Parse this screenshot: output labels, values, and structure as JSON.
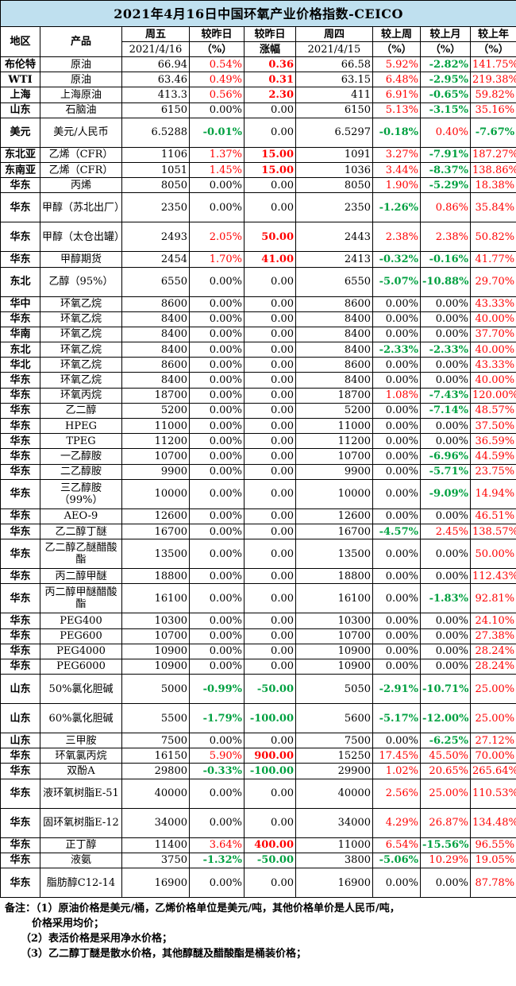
{
  "title": "2021年4月16日中国环氧产业价格指数-CEICO",
  "headers": {
    "region": "地区",
    "product": "产品",
    "fri": "周五",
    "fri_date": "2021/4/16",
    "chg_day_pct": "较昨日",
    "chg_day_pct_unit": "（%）",
    "chg_day_abs": "较昨日",
    "chg_day_abs_unit": "涨幅",
    "thu": "周四",
    "thu_date": "2021/4/15",
    "chg_week": "较上周",
    "chg_week_unit": "（%）",
    "chg_month": "较上月",
    "chg_month_unit": "（%）",
    "chg_year": "较上年",
    "chg_year_unit": "（%）"
  },
  "rows": [
    {
      "region": "布伦特",
      "product": "原油",
      "fri": "66.94",
      "d_pct": "0.54%",
      "d_abs": "0.36",
      "thu": "66.58",
      "w": "5.92%",
      "m": "-2.82%",
      "y": "141.75%",
      "h": 20
    },
    {
      "region": "WTI",
      "product": "原油",
      "fri": "63.46",
      "d_pct": "0.49%",
      "d_abs": "0.31",
      "thu": "63.15",
      "w": "6.48%",
      "m": "-2.95%",
      "y": "219.38%",
      "h": 20
    },
    {
      "region": "上海",
      "product": "上海原油",
      "fri": "413.3",
      "d_pct": "0.56%",
      "d_abs": "2.30",
      "thu": "411",
      "w": "6.91%",
      "m": "-0.65%",
      "y": "59.82%",
      "h": 20
    },
    {
      "region": "山东",
      "product": "石脑油",
      "fri": "6150",
      "d_pct": "0.00%",
      "d_abs": "0.00",
      "thu": "6150",
      "w": "5.13%",
      "m": "-3.15%",
      "y": "35.16%",
      "h": 20
    },
    {
      "region": "美元",
      "product": "美元/人民币",
      "fri": "6.5288",
      "d_pct": "-0.01%",
      "d_abs": "0.00",
      "thu": "6.5297",
      "w": "-0.18%",
      "m": "0.40%",
      "y": "-7.67%",
      "h": 38
    },
    {
      "region": "东北亚",
      "product": "乙烯（CFR）",
      "fri": "1106",
      "d_pct": "1.37%",
      "d_abs": "15.00",
      "thu": "1091",
      "w": "3.27%",
      "m": "-7.91%",
      "y": "187.27%",
      "h": 20
    },
    {
      "region": "东南亚",
      "product": "乙烯（CFR）",
      "fri": "1051",
      "d_pct": "1.45%",
      "d_abs": "15.00",
      "thu": "1036",
      "w": "3.44%",
      "m": "-8.37%",
      "y": "138.86%",
      "h": 20
    },
    {
      "region": "华东",
      "product": "丙烯",
      "fri": "8050",
      "d_pct": "0.00%",
      "d_abs": "0.00",
      "thu": "8050",
      "w": "1.90%",
      "m": "-5.29%",
      "y": "18.38%",
      "h": 20
    },
    {
      "region": "华东",
      "product": "甲醇（苏北出厂）",
      "fri": "2350",
      "d_pct": "0.00%",
      "d_abs": "0.00",
      "thu": "2350",
      "w": "-1.26%",
      "m": "0.86%",
      "y": "35.84%",
      "h": 38
    },
    {
      "region": "华东",
      "product": "甲醇（太仓出罐）",
      "fri": "2493",
      "d_pct": "2.05%",
      "d_abs": "50.00",
      "thu": "2443",
      "w": "2.38%",
      "m": "2.38%",
      "y": "50.82%",
      "h": 38
    },
    {
      "region": "华东",
      "product": "甲醇期货",
      "fri": "2454",
      "d_pct": "1.70%",
      "d_abs": "41.00",
      "thu": "2413",
      "w": "-0.32%",
      "m": "-0.16%",
      "y": "41.77%",
      "h": 20
    },
    {
      "region": "东北",
      "product": "乙醇（95%）",
      "fri": "6550",
      "d_pct": "0.00%",
      "d_abs": "0.00",
      "thu": "6550",
      "w": "-5.07%",
      "m": "-10.88%",
      "y": "29.70%",
      "h": 38
    },
    {
      "region": "华中",
      "product": "环氧乙烷",
      "fri": "8600",
      "d_pct": "0.00%",
      "d_abs": "0.00",
      "thu": "8600",
      "w": "0.00%",
      "m": "0.00%",
      "y": "43.33%",
      "h": 20
    },
    {
      "region": "华东",
      "product": "环氧乙烷",
      "fri": "8400",
      "d_pct": "0.00%",
      "d_abs": "0.00",
      "thu": "8400",
      "w": "0.00%",
      "m": "0.00%",
      "y": "40.00%",
      "h": 20
    },
    {
      "region": "华南",
      "product": "环氧乙烷",
      "fri": "8400",
      "d_pct": "0.00%",
      "d_abs": "0.00",
      "thu": "8400",
      "w": "0.00%",
      "m": "0.00%",
      "y": "37.70%",
      "h": 20
    },
    {
      "region": "东北",
      "product": "环氧乙烷",
      "fri": "8400",
      "d_pct": "0.00%",
      "d_abs": "0.00",
      "thu": "8400",
      "w": "-2.33%",
      "m": "-2.33%",
      "y": "40.00%",
      "h": 20
    },
    {
      "region": "华北",
      "product": "环氧乙烷",
      "fri": "8600",
      "d_pct": "0.00%",
      "d_abs": "0.00",
      "thu": "8600",
      "w": "0.00%",
      "m": "0.00%",
      "y": "43.33%",
      "h": 20
    },
    {
      "region": "华东",
      "product": "环氧乙烷",
      "fri": "8400",
      "d_pct": "0.00%",
      "d_abs": "0.00",
      "thu": "8400",
      "w": "0.00%",
      "m": "0.00%",
      "y": "40.00%",
      "h": 20
    },
    {
      "region": "华东",
      "product": "环氧丙烷",
      "fri": "18700",
      "d_pct": "0.00%",
      "d_abs": "0.00",
      "thu": "18700",
      "w": "1.08%",
      "m": "-7.43%",
      "y": "120.00%",
      "h": 20
    },
    {
      "region": "华东",
      "product": "乙二醇",
      "fri": "5200",
      "d_pct": "0.00%",
      "d_abs": "0.00",
      "thu": "5200",
      "w": "0.00%",
      "m": "-7.14%",
      "y": "48.57%",
      "h": 20
    },
    {
      "region": "华东",
      "product": "HPEG",
      "fri": "11000",
      "d_pct": "0.00%",
      "d_abs": "0.00",
      "thu": "11000",
      "w": "0.00%",
      "m": "0.00%",
      "y": "37.50%",
      "h": 20
    },
    {
      "region": "华东",
      "product": "TPEG",
      "fri": "11200",
      "d_pct": "0.00%",
      "d_abs": "0.00",
      "thu": "11200",
      "w": "0.00%",
      "m": "0.00%",
      "y": "36.59%",
      "h": 20
    },
    {
      "region": "华东",
      "product": "一乙醇胺",
      "fri": "10700",
      "d_pct": "0.00%",
      "d_abs": "0.00",
      "thu": "10700",
      "w": "0.00%",
      "m": "-6.96%",
      "y": "44.59%",
      "h": 20
    },
    {
      "region": "华东",
      "product": "二乙醇胺",
      "fri": "9900",
      "d_pct": "0.00%",
      "d_abs": "0.00",
      "thu": "9900",
      "w": "0.00%",
      "m": "-5.71%",
      "y": "23.75%",
      "h": 20
    },
    {
      "region": "华东",
      "product": "三乙醇胺（99%）",
      "fri": "10000",
      "d_pct": "0.00%",
      "d_abs": "0.00",
      "thu": "10000",
      "w": "0.00%",
      "m": "-9.09%",
      "y": "14.94%",
      "h": 38
    },
    {
      "region": "华东",
      "product": "AEO-9",
      "fri": "12600",
      "d_pct": "0.00%",
      "d_abs": "0.00",
      "thu": "12600",
      "w": "0.00%",
      "m": "0.00%",
      "y": "46.51%",
      "h": 20
    },
    {
      "region": "华东",
      "product": "乙二醇丁醚",
      "fri": "16700",
      "d_pct": "0.00%",
      "d_abs": "0.00",
      "thu": "16700",
      "w": "-4.57%",
      "m": "2.45%",
      "y": "138.57%",
      "h": 20
    },
    {
      "region": "华东",
      "product": "乙二醇乙醚醋酸酯",
      "fri": "13500",
      "d_pct": "0.00%",
      "d_abs": "0.00",
      "thu": "13500",
      "w": "0.00%",
      "m": "0.00%",
      "y": "50.00%",
      "h": 38
    },
    {
      "region": "华东",
      "product": "丙二醇甲醚",
      "fri": "18800",
      "d_pct": "0.00%",
      "d_abs": "0.00",
      "thu": "18800",
      "w": "0.00%",
      "m": "0.00%",
      "y": "112.43%",
      "h": 20
    },
    {
      "region": "华东",
      "product": "丙二醇甲醚醋酸酯",
      "fri": "16100",
      "d_pct": "0.00%",
      "d_abs": "0.00",
      "thu": "16100",
      "w": "0.00%",
      "m": "-1.83%",
      "y": "92.81%",
      "h": 38
    },
    {
      "region": "华东",
      "product": "PEG400",
      "fri": "10300",
      "d_pct": "0.00%",
      "d_abs": "0.00",
      "thu": "10300",
      "w": "0.00%",
      "m": "0.00%",
      "y": "24.10%",
      "h": 20
    },
    {
      "region": "华东",
      "product": "PEG600",
      "fri": "10700",
      "d_pct": "0.00%",
      "d_abs": "0.00",
      "thu": "10700",
      "w": "0.00%",
      "m": "0.00%",
      "y": "27.38%",
      "h": 20
    },
    {
      "region": "华东",
      "product": "PEG4000",
      "fri": "10900",
      "d_pct": "0.00%",
      "d_abs": "0.00",
      "thu": "10900",
      "w": "0.00%",
      "m": "0.00%",
      "y": "28.24%",
      "h": 20
    },
    {
      "region": "华东",
      "product": "PEG6000",
      "fri": "10900",
      "d_pct": "0.00%",
      "d_abs": "0.00",
      "thu": "10900",
      "w": "0.00%",
      "m": "0.00%",
      "y": "28.24%",
      "h": 20
    },
    {
      "region": "山东",
      "product": "50%氯化胆碱",
      "fri": "5000",
      "d_pct": "-0.99%",
      "d_abs": "-50.00",
      "thu": "5050",
      "w": "-2.91%",
      "m": "-10.71%",
      "y": "25.00%",
      "h": 38
    },
    {
      "region": "山东",
      "product": "60%氯化胆碱",
      "fri": "5500",
      "d_pct": "-1.79%",
      "d_abs": "-100.00",
      "thu": "5600",
      "w": "-5.17%",
      "m": "-12.00%",
      "y": "25.00%",
      "h": 38
    },
    {
      "region": "山东",
      "product": "三甲胺",
      "fri": "7500",
      "d_pct": "0.00%",
      "d_abs": "0.00",
      "thu": "7500",
      "w": "0.00%",
      "m": "-6.25%",
      "y": "27.12%",
      "h": 20
    },
    {
      "region": "华东",
      "product": "环氧氯丙烷",
      "fri": "16150",
      "d_pct": "5.90%",
      "d_abs": "900.00",
      "thu": "15250",
      "w": "17.45%",
      "m": "45.50%",
      "y": "70.00%",
      "h": 20
    },
    {
      "region": "华东",
      "product": "双酚A",
      "fri": "29800",
      "d_pct": "-0.33%",
      "d_abs": "-100.00",
      "thu": "29900",
      "w": "1.02%",
      "m": "20.65%",
      "y": "265.64%",
      "h": 20
    },
    {
      "region": "华东",
      "product": "液环氧树脂E-51",
      "fri": "40000",
      "d_pct": "0.00%",
      "d_abs": "0.00",
      "thu": "40000",
      "w": "2.56%",
      "m": "25.00%",
      "y": "110.53%",
      "h": 38
    },
    {
      "region": "华东",
      "product": "固环氧树脂E-12",
      "fri": "34000",
      "d_pct": "0.00%",
      "d_abs": "0.00",
      "thu": "34000",
      "w": "4.29%",
      "m": "26.87%",
      "y": "134.48%",
      "h": 38
    },
    {
      "region": "华东",
      "product": "正丁醇",
      "fri": "11400",
      "d_pct": "3.64%",
      "d_abs": "400.00",
      "thu": "11000",
      "w": "6.54%",
      "m": "-15.56%",
      "y": "96.55%",
      "h": 20
    },
    {
      "region": "华东",
      "product": "液氨",
      "fri": "3750",
      "d_pct": "-1.32%",
      "d_abs": "-50.00",
      "thu": "3800",
      "w": "-5.06%",
      "m": "10.29%",
      "y": "19.05%",
      "h": 20
    },
    {
      "region": "华东",
      "product": "脂肪醇C12-14",
      "fri": "16900",
      "d_pct": "0.00%",
      "d_abs": "0.00",
      "thu": "16900",
      "w": "0.00%",
      "m": "0.00%",
      "y": "87.78%",
      "h": 38
    }
  ],
  "notes": {
    "label": "备注：",
    "n1a": "（1）原油价格是美元/桶，乙烯价格单位是美元/吨，其他价格单价是人民币/吨，",
    "n1b": "价格采用均价；",
    "n2": "（2）表活价格是采用净水价格；",
    "n3": "（3）乙二醇丁醚是散水价格，其他醇醚及醋酸酯是桶装价格；"
  }
}
